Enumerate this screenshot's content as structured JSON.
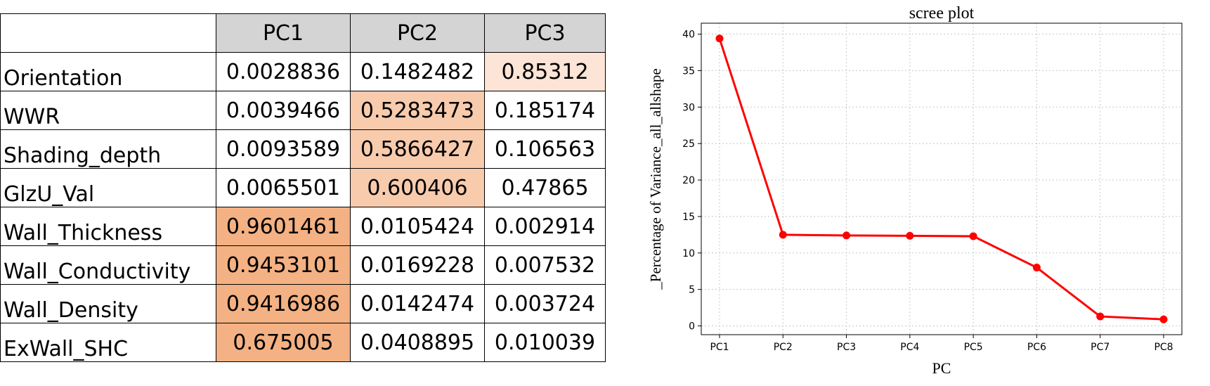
{
  "table": {
    "headers": [
      "",
      "PC1",
      "PC2",
      "PC3"
    ],
    "rows": [
      {
        "label": "Orientation",
        "values": [
          "0.0028836",
          "0.1482482",
          "0.85312"
        ],
        "highlight": [
          "",
          "",
          "light"
        ]
      },
      {
        "label": "WWR",
        "values": [
          "0.0039466",
          "0.5283473",
          "0.185174"
        ],
        "highlight": [
          "",
          "mid",
          ""
        ]
      },
      {
        "label": "Shading_depth",
        "values": [
          "0.0093589",
          "0.5866427",
          "0.106563"
        ],
        "highlight": [
          "",
          "mid",
          ""
        ]
      },
      {
        "label": "GlzU_Val",
        "values": [
          "0.0065501",
          "0.600406",
          "0.47865"
        ],
        "highlight": [
          "",
          "mid",
          ""
        ]
      },
      {
        "label": "Wall_Thickness",
        "values": [
          "0.9601461",
          "0.0105424",
          "0.002914"
        ],
        "highlight": [
          "strong",
          "",
          ""
        ]
      },
      {
        "label": "Wall_Conductivity",
        "values": [
          "0.9453101",
          "0.0169228",
          "0.007532"
        ],
        "highlight": [
          "strong",
          "",
          ""
        ]
      },
      {
        "label": "Wall_Density",
        "values": [
          "0.9416986",
          "0.0142474",
          "0.003724"
        ],
        "highlight": [
          "strong",
          "",
          ""
        ]
      },
      {
        "label": "ExWall_SHC",
        "values": [
          "0.675005",
          "0.0408895",
          "0.010039"
        ],
        "highlight": [
          "strong",
          "",
          ""
        ]
      }
    ],
    "colors": {
      "header": "#d4d4d4",
      "strong": "#f4b183",
      "mid": "#f8cbad",
      "light": "#fce4d6"
    }
  },
  "chart_data": {
    "type": "line",
    "title": "scree plot",
    "xlabel": "PC",
    "ylabel": "_Percentage of Variance_all_allshape",
    "categories": [
      "PC1",
      "PC2",
      "PC3",
      "PC4",
      "PC5",
      "PC6",
      "PC7",
      "PC8"
    ],
    "series": [
      {
        "values": [
          39.4,
          12.5,
          12.4,
          12.35,
          12.3,
          8.0,
          1.3,
          0.9
        ],
        "color": "#ff0000"
      }
    ],
    "ylim": [
      -1.2,
      41.5
    ],
    "yticks": [
      0,
      5,
      10,
      15,
      20,
      25,
      30,
      35,
      40
    ],
    "grid": true
  }
}
